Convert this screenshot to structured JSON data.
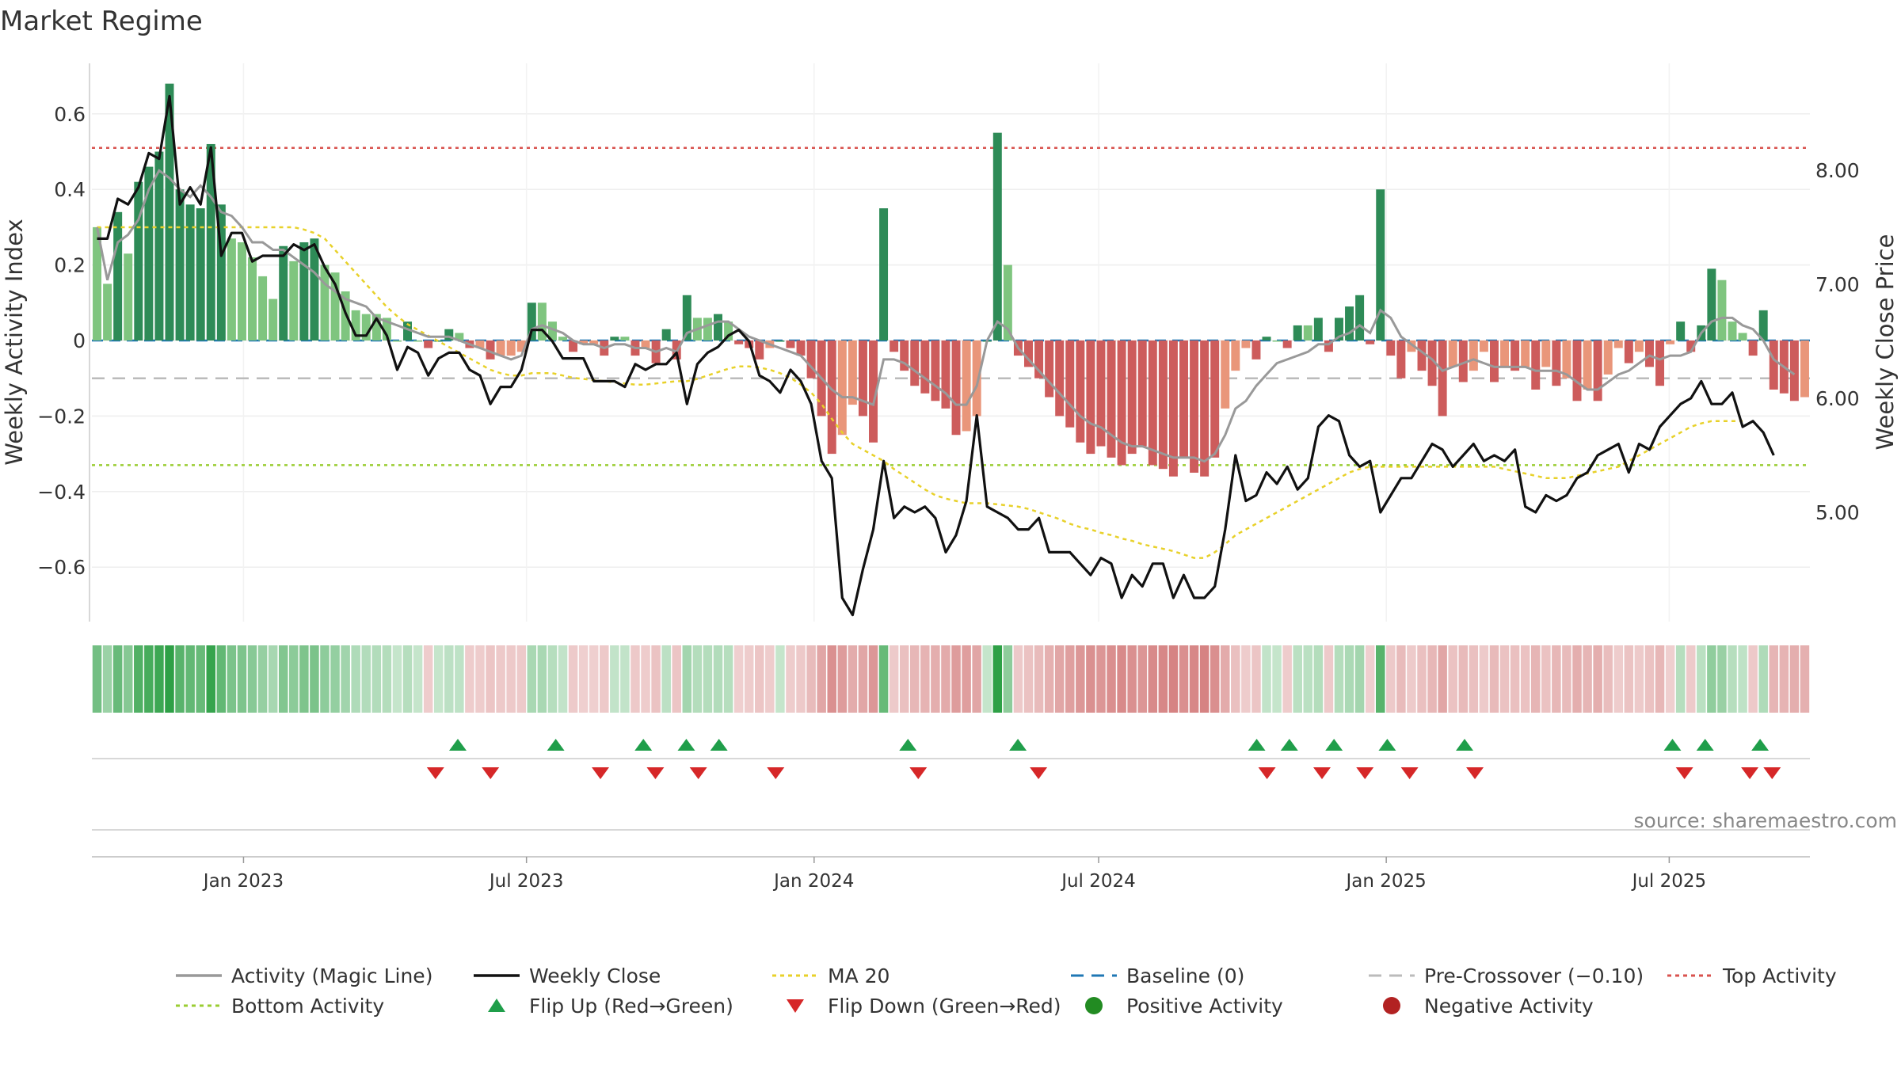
{
  "title": "Market Regime",
  "source": "source: sharemaestro.com",
  "colors": {
    "green_strong": "#2e8b57",
    "green_light": "#7fc57f",
    "red_strong": "#cd5c5c",
    "red_light": "#e9967a",
    "magic_line": "#999999",
    "close": "#111111",
    "ma20": "#e8d12a",
    "baseline": "#1f77b4",
    "pre_crossover": "#bbbbbb",
    "top_activity": "#d9534f",
    "bottom_activity": "#9acd32",
    "flip_up": "#1f9e4a",
    "flip_down": "#d62728"
  },
  "chart_data": {
    "type": "bar",
    "title": "Market Regime",
    "ylabel_left": "Weekly Activity Index",
    "ylabel_right": "Weekly Close Price",
    "ylim_left": [
      -0.73,
      0.73
    ],
    "ylim_right": [
      3.9,
      8.9
    ],
    "yticks_left": [
      {
        "v": 0.6,
        "label": "0.6"
      },
      {
        "v": 0.4,
        "label": "0.4"
      },
      {
        "v": 0.2,
        "label": "0.2"
      },
      {
        "v": 0,
        "label": "0"
      },
      {
        "v": -0.2,
        "label": "−0.2"
      },
      {
        "v": -0.4,
        "label": "−0.4"
      },
      {
        "v": -0.6,
        "label": "−0.6"
      }
    ],
    "yticks_right": [
      {
        "v": 8.0,
        "label": "8.00"
      },
      {
        "v": 7.0,
        "label": "7.00"
      },
      {
        "v": 6.0,
        "label": "6.00"
      },
      {
        "v": 5.0,
        "label": "5.00"
      }
    ],
    "x_start": "2022-09-26",
    "x_end": "2025-09-29",
    "xticks": [
      {
        "date": "2023-01-01",
        "label": "Jan 2023"
      },
      {
        "date": "2023-07-01",
        "label": "Jul 2023"
      },
      {
        "date": "2024-01-01",
        "label": "Jan 2024"
      },
      {
        "date": "2024-07-01",
        "label": "Jul 2024"
      },
      {
        "date": "2025-01-01",
        "label": "Jan 2025"
      },
      {
        "date": "2025-07-01",
        "label": "Jul 2025"
      }
    ],
    "reference_lines": {
      "top_activity": 0.51,
      "bottom_activity": -0.33,
      "pre_crossover": -0.1,
      "baseline": 0
    },
    "activity": [
      0.3,
      0.15,
      0.34,
      0.23,
      0.42,
      0.46,
      0.5,
      0.68,
      0.4,
      0.36,
      0.35,
      0.52,
      0.36,
      0.27,
      0.26,
      0.22,
      0.17,
      0.11,
      0.25,
      0.21,
      0.26,
      0.27,
      0.2,
      0.18,
      0.13,
      0.08,
      0.07,
      0.07,
      0.06,
      0.0,
      0.05,
      0.0,
      -0.02,
      0.0,
      0.03,
      0.02,
      -0.02,
      -0.02,
      -0.05,
      -0.04,
      -0.04,
      -0.03,
      0.1,
      0.1,
      0.05,
      0.01,
      -0.03,
      -0.01,
      -0.01,
      -0.04,
      0.01,
      0.01,
      -0.04,
      -0.02,
      -0.06,
      0.03,
      -0.05,
      0.12,
      0.06,
      0.06,
      0.07,
      0.05,
      -0.01,
      -0.02,
      -0.05,
      -0.02,
      0.0,
      -0.02,
      -0.04,
      -0.1,
      -0.2,
      -0.3,
      -0.25,
      -0.17,
      -0.2,
      -0.27,
      0.35,
      -0.03,
      -0.08,
      -0.12,
      -0.14,
      -0.16,
      -0.18,
      -0.25,
      -0.24,
      -0.2,
      0.0,
      0.55,
      0.2,
      -0.04,
      -0.07,
      -0.1,
      -0.15,
      -0.2,
      -0.23,
      -0.27,
      -0.3,
      -0.28,
      -0.31,
      -0.33,
      -0.3,
      -0.28,
      -0.33,
      -0.34,
      -0.36,
      -0.31,
      -0.35,
      -0.36,
      -0.31,
      -0.18,
      -0.08,
      -0.02,
      -0.05,
      0.01,
      0.0,
      -0.02,
      0.04,
      0.04,
      0.06,
      -0.03,
      0.06,
      0.09,
      0.12,
      -0.01,
      0.4,
      -0.04,
      -0.1,
      -0.03,
      -0.08,
      -0.12,
      -0.2,
      -0.07,
      -0.11,
      -0.08,
      -0.03,
      -0.11,
      -0.07,
      -0.08,
      -0.07,
      -0.13,
      -0.07,
      -0.12,
      -0.1,
      -0.16,
      -0.13,
      -0.16,
      -0.09,
      -0.02,
      -0.06,
      -0.03,
      -0.07,
      -0.12,
      -0.01,
      0.05,
      -0.03,
      0.04,
      0.19,
      0.16,
      0.05,
      0.02,
      -0.04,
      0.08,
      -0.13,
      -0.14,
      -0.16,
      -0.15
    ],
    "magic_line": [
      0.3,
      0.16,
      0.26,
      0.28,
      0.32,
      0.4,
      0.45,
      0.43,
      0.4,
      0.38,
      0.41,
      0.38,
      0.34,
      0.33,
      0.3,
      0.26,
      0.26,
      0.24,
      0.24,
      0.22,
      0.2,
      0.18,
      0.15,
      0.13,
      0.11,
      0.1,
      0.09,
      0.06,
      0.05,
      0.04,
      0.03,
      0.02,
      0.01,
      0.01,
      0.01,
      0.0,
      -0.01,
      -0.02,
      -0.03,
      -0.04,
      -0.05,
      -0.04,
      0.03,
      0.04,
      0.03,
      0.02,
      0.0,
      -0.01,
      -0.01,
      -0.02,
      -0.01,
      -0.01,
      -0.02,
      -0.02,
      -0.03,
      -0.02,
      -0.03,
      0.02,
      0.03,
      0.04,
      0.05,
      0.05,
      0.03,
      0.01,
      0.0,
      -0.01,
      -0.02,
      -0.03,
      -0.04,
      -0.07,
      -0.1,
      -0.13,
      -0.15,
      -0.15,
      -0.16,
      -0.17,
      -0.05,
      -0.05,
      -0.06,
      -0.08,
      -0.1,
      -0.12,
      -0.14,
      -0.17,
      -0.17,
      -0.12,
      0.0,
      0.05,
      0.03,
      -0.02,
      -0.05,
      -0.08,
      -0.11,
      -0.14,
      -0.17,
      -0.2,
      -0.22,
      -0.23,
      -0.25,
      -0.27,
      -0.28,
      -0.28,
      -0.29,
      -0.3,
      -0.31,
      -0.31,
      -0.31,
      -0.32,
      -0.3,
      -0.25,
      -0.18,
      -0.16,
      -0.12,
      -0.09,
      -0.06,
      -0.05,
      -0.04,
      -0.03,
      -0.01,
      -0.01,
      0.01,
      0.02,
      0.04,
      0.02,
      0.08,
      0.06,
      0.01,
      -0.01,
      -0.03,
      -0.05,
      -0.08,
      -0.07,
      -0.06,
      -0.05,
      -0.06,
      -0.07,
      -0.07,
      -0.07,
      -0.07,
      -0.08,
      -0.08,
      -0.08,
      -0.09,
      -0.11,
      -0.13,
      -0.13,
      -0.11,
      -0.09,
      -0.08,
      -0.06,
      -0.04,
      -0.05,
      -0.04,
      -0.04,
      -0.03,
      0.02,
      0.05,
      0.06,
      0.06,
      0.04,
      0.03,
      0.0,
      -0.05,
      -0.07,
      -0.09
    ],
    "close": [
      7.4,
      7.4,
      7.75,
      7.7,
      7.85,
      8.15,
      8.1,
      8.65,
      7.7,
      7.85,
      7.7,
      8.2,
      7.25,
      7.45,
      7.45,
      7.2,
      7.25,
      7.25,
      7.25,
      7.35,
      7.3,
      7.35,
      7.15,
      7.0,
      6.75,
      6.55,
      6.55,
      6.7,
      6.55,
      6.25,
      6.45,
      6.4,
      6.2,
      6.35,
      6.4,
      6.4,
      6.25,
      6.2,
      5.95,
      6.1,
      6.1,
      6.25,
      6.6,
      6.6,
      6.5,
      6.35,
      6.35,
      6.35,
      6.15,
      6.15,
      6.15,
      6.1,
      6.3,
      6.25,
      6.3,
      6.3,
      6.4,
      5.95,
      6.3,
      6.4,
      6.45,
      6.55,
      6.6,
      6.5,
      6.2,
      6.15,
      6.05,
      6.25,
      6.15,
      5.95,
      5.45,
      5.3,
      4.25,
      4.1,
      4.5,
      4.85,
      5.45,
      4.95,
      5.05,
      5.0,
      5.05,
      4.95,
      4.65,
      4.8,
      5.1,
      5.85,
      5.05,
      5.0,
      4.95,
      4.85,
      4.85,
      4.95,
      4.65,
      4.65,
      4.65,
      4.55,
      4.45,
      4.6,
      4.55,
      4.25,
      4.45,
      4.35,
      4.55,
      4.55,
      4.25,
      4.45,
      4.25,
      4.25,
      4.35,
      4.85,
      5.5,
      5.1,
      5.15,
      5.35,
      5.25,
      5.4,
      5.2,
      5.3,
      5.75,
      5.85,
      5.8,
      5.5,
      5.4,
      5.45,
      5.0,
      5.15,
      5.3,
      5.3,
      5.45,
      5.6,
      5.55,
      5.4,
      5.5,
      5.6,
      5.45,
      5.5,
      5.45,
      5.55,
      5.05,
      5.0,
      5.15,
      5.1,
      5.15,
      5.3,
      5.35,
      5.5,
      5.55,
      5.6,
      5.35,
      5.6,
      5.55,
      5.75,
      5.85,
      5.95,
      6.0,
      6.15,
      5.95,
      5.95,
      6.05,
      5.75,
      5.8,
      5.7,
      5.5
    ],
    "ma20": [
      7.5,
      7.5,
      7.5,
      7.5,
      7.5,
      7.5,
      7.5,
      7.5,
      7.5,
      7.5,
      7.5,
      7.5,
      7.5,
      7.5,
      7.5,
      7.5,
      7.5,
      7.5,
      7.5,
      7.5,
      7.48,
      7.45,
      7.4,
      7.3,
      7.2,
      7.1,
      7.0,
      6.9,
      6.8,
      6.72,
      6.65,
      6.6,
      6.55,
      6.5,
      6.45,
      6.4,
      6.35,
      6.3,
      6.25,
      6.22,
      6.2,
      6.2,
      6.22,
      6.22,
      6.22,
      6.2,
      6.18,
      6.17,
      6.16,
      6.15,
      6.14,
      6.13,
      6.12,
      6.12,
      6.13,
      6.14,
      6.15,
      6.15,
      6.17,
      6.2,
      6.23,
      6.26,
      6.28,
      6.28,
      6.27,
      6.25,
      6.22,
      6.18,
      6.12,
      6.05,
      5.95,
      5.82,
      5.7,
      5.6,
      5.55,
      5.5,
      5.45,
      5.38,
      5.32,
      5.26,
      5.2,
      5.15,
      5.12,
      5.1,
      5.08,
      5.08,
      5.08,
      5.07,
      5.06,
      5.05,
      5.03,
      5.0,
      4.97,
      4.94,
      4.9,
      4.87,
      4.85,
      4.82,
      4.8,
      4.77,
      4.75,
      4.72,
      4.7,
      4.68,
      4.66,
      4.63,
      4.6,
      4.6,
      4.65,
      4.72,
      4.8,
      4.85,
      4.9,
      4.95,
      5.0,
      5.05,
      5.1,
      5.15,
      5.2,
      5.25,
      5.3,
      5.35,
      5.38,
      5.4,
      5.4,
      5.4,
      5.4,
      5.4,
      5.4,
      5.4,
      5.4,
      5.4,
      5.4,
      5.4,
      5.4,
      5.4,
      5.38,
      5.36,
      5.34,
      5.32,
      5.3,
      5.3,
      5.3,
      5.32,
      5.34,
      5.36,
      5.38,
      5.4,
      5.45,
      5.5,
      5.55,
      5.6,
      5.65,
      5.7,
      5.75,
      5.78,
      5.8,
      5.8,
      5.8,
      5.8
    ],
    "flip_up_x": [
      0.213,
      0.27,
      0.321,
      0.346,
      0.365,
      0.475,
      0.539,
      0.678,
      0.697,
      0.723,
      0.754,
      0.799,
      0.92,
      0.939,
      0.971
    ],
    "flip_down_x": [
      0.2,
      0.232,
      0.296,
      0.328,
      0.353,
      0.398,
      0.481,
      0.551,
      0.684,
      0.716,
      0.741,
      0.767,
      0.805,
      0.927,
      0.965,
      0.978
    ],
    "legend": [
      {
        "label": "Activity (Magic Line)",
        "type": "line",
        "color": "#999999"
      },
      {
        "label": "Weekly Close",
        "type": "line",
        "color": "#111111"
      },
      {
        "label": "MA 20",
        "type": "dotted",
        "color": "#e8d12a"
      },
      {
        "label": "Baseline (0)",
        "type": "dashed",
        "color": "#1f77b4"
      },
      {
        "label": "Pre-Crossover (−0.10)",
        "type": "dashed",
        "color": "#bbbbbb"
      },
      {
        "label": "Top Activity",
        "type": "dotted",
        "color": "#d9534f"
      },
      {
        "label": "Bottom Activity",
        "type": "dotted",
        "color": "#9acd32"
      },
      {
        "label": "Flip Up (Red→Green)",
        "type": "triangle-up",
        "color": "#1f9e4a"
      },
      {
        "label": "Flip Down (Green→Red)",
        "type": "triangle-down",
        "color": "#d62728"
      },
      {
        "label": "Positive Activity",
        "type": "circle",
        "color": "#228b22"
      },
      {
        "label": "Negative Activity",
        "type": "circle",
        "color": "#b22222"
      }
    ]
  }
}
